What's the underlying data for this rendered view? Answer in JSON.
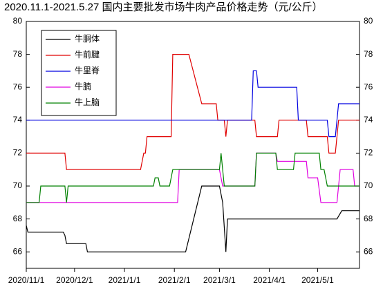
{
  "chart_data": {
    "type": "line",
    "title": "2020.11.1-2021.5.27 国内主要批发市场牛肉产品价格走势（元/公斤）",
    "xlim": [
      "2020-11-01",
      "2021-05-27"
    ],
    "xticks": [
      {
        "value": "2020-11-01",
        "label": "2020/11/1"
      },
      {
        "value": "2020-12-01",
        "label": "2020/12/1"
      },
      {
        "value": "2021-01-01",
        "label": "2021/1/1"
      },
      {
        "value": "2021-02-01",
        "label": "2021/2/1"
      },
      {
        "value": "2021-03-01",
        "label": "2021/3/1"
      },
      {
        "value": "2021-04-01",
        "label": "2021/4/1"
      },
      {
        "value": "2021-05-01",
        "label": "2021/5/1"
      }
    ],
    "ylim": [
      65,
      80
    ],
    "yticks": [
      66,
      68,
      70,
      72,
      74,
      76,
      78,
      80
    ],
    "y2lim": [
      65,
      80
    ],
    "y2ticks": [
      66,
      68,
      70,
      72,
      74,
      76,
      78,
      80
    ],
    "legend": "upper left",
    "series": [
      {
        "name": "牛胴体",
        "color": "#000000",
        "x": [
          "2020-11-01",
          "2020-11-02",
          "2020-11-24",
          "2020-11-25",
          "2020-11-26",
          "2020-12-08",
          "2020-12-09",
          "2021-02-08",
          "2021-02-18",
          "2021-03-01",
          "2021-03-03",
          "2021-03-05",
          "2021-03-06",
          "2021-05-13",
          "2021-05-16",
          "2021-05-27"
        ],
        "values": [
          67.6,
          67.2,
          67.2,
          67.0,
          66.5,
          66.5,
          66.0,
          66.0,
          70.0,
          70.0,
          69.0,
          66.0,
          68.0,
          68.0,
          68.5,
          68.5
        ]
      },
      {
        "name": "牛前腱",
        "color": "#e00000",
        "x": [
          "2020-11-01",
          "2020-11-25",
          "2020-11-26",
          "2021-01-11",
          "2021-01-13",
          "2021-01-14",
          "2021-01-15",
          "2021-01-30",
          "2021-01-31",
          "2021-02-10",
          "2021-02-18",
          "2021-02-27",
          "2021-02-28",
          "2021-03-04",
          "2021-03-05",
          "2021-03-06",
          "2021-03-23",
          "2021-03-24",
          "2021-04-06",
          "2021-04-07",
          "2021-04-24",
          "2021-04-25",
          "2021-05-07",
          "2021-05-08",
          "2021-05-12",
          "2021-05-14",
          "2021-05-27"
        ],
        "values": [
          72,
          72,
          71,
          71,
          72,
          72,
          73,
          73,
          78,
          78,
          75,
          75,
          74,
          74,
          73,
          74,
          74,
          73,
          73,
          74,
          74,
          73,
          73,
          72,
          72,
          74,
          74
        ]
      },
      {
        "name": "牛里脊",
        "color": "#0000e0",
        "x": [
          "2020-11-01",
          "2021-03-21",
          "2021-03-22",
          "2021-03-24",
          "2021-03-25",
          "2021-04-18",
          "2021-04-19",
          "2021-05-07",
          "2021-05-08",
          "2021-05-12",
          "2021-05-14",
          "2021-05-27"
        ],
        "values": [
          74,
          74,
          77,
          77,
          76,
          76,
          74,
          74,
          73,
          73,
          75,
          75
        ]
      },
      {
        "name": "牛腩",
        "color": "#e000e0",
        "x": [
          "2020-11-01",
          "2021-02-03",
          "2021-02-04",
          "2021-03-01",
          "2021-03-03",
          "2021-03-23",
          "2021-03-24",
          "2021-04-05",
          "2021-04-06",
          "2021-04-24",
          "2021-04-25",
          "2021-05-01",
          "2021-05-03",
          "2021-05-13",
          "2021-05-15",
          "2021-05-23",
          "2021-05-24",
          "2021-05-27"
        ],
        "values": [
          69,
          69,
          71,
          71,
          70,
          70,
          72,
          72,
          71.5,
          71.5,
          70.5,
          70.5,
          69,
          69,
          71,
          71,
          70,
          70
        ]
      },
      {
        "name": "牛上脑",
        "color": "#008000",
        "x": [
          "2020-11-01",
          "2020-11-09",
          "2020-11-10",
          "2020-11-25",
          "2020-11-26",
          "2020-11-27",
          "2021-01-19",
          "2021-01-20",
          "2021-01-22",
          "2021-01-23",
          "2021-01-29",
          "2021-01-31",
          "2021-03-01",
          "2021-03-02",
          "2021-03-04",
          "2021-03-23",
          "2021-03-24",
          "2021-04-05",
          "2021-04-06",
          "2021-04-16",
          "2021-04-17",
          "2021-05-02",
          "2021-05-03",
          "2021-05-05",
          "2021-05-07",
          "2021-05-27"
        ],
        "values": [
          69,
          69,
          70,
          70,
          69,
          70,
          70,
          70.5,
          70.5,
          70,
          70,
          71,
          71,
          72,
          70,
          70,
          72,
          72,
          71,
          71,
          72,
          72,
          71,
          71,
          70,
          70
        ]
      }
    ]
  }
}
